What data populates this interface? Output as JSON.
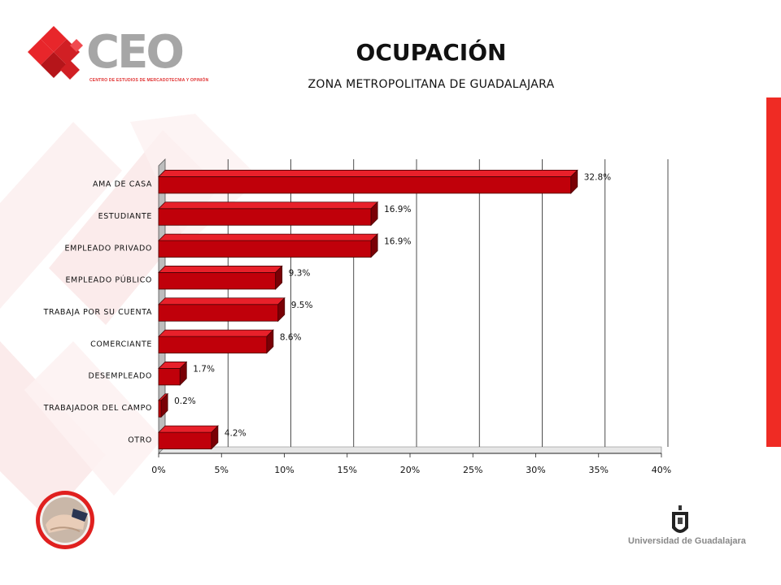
{
  "header": {
    "title": "OCUPACIÓN",
    "subtitle": "ZONA METROPOLITANA DE GUADALAJARA"
  },
  "logo": {
    "text": "CEO",
    "tagline": "CENTRO DE ESTUDIOS DE MERCADOTECNIA Y OPINIÓN"
  },
  "footer": {
    "university": "Universidad de Guadalajara"
  },
  "colors": {
    "bar": "#c0000a",
    "bar_dark": "#7a0006",
    "bar_light": "#e8202a",
    "accent": "#ef2b24"
  },
  "chart_data": {
    "type": "bar",
    "orientation": "horizontal",
    "style": "3d",
    "categories": [
      "AMA DE CASA",
      "ESTUDIANTE",
      "EMPLEADO PRIVADO",
      "EMPLEADO PÚBLICO",
      "TRABAJA POR SU CUENTA",
      "COMERCIANTE",
      "DESEMPLEADO",
      "TRABAJADOR DEL CAMPO",
      "OTRO"
    ],
    "values": [
      32.8,
      16.9,
      16.9,
      9.3,
      9.5,
      8.6,
      1.7,
      0.2,
      4.2
    ],
    "value_labels": [
      "32.8%",
      "16.9%",
      "16.9%",
      "9.3%",
      "9.5%",
      "8.6%",
      "1.7%",
      "0.2%",
      "4.2%"
    ],
    "x_ticks": [
      "0%",
      "5%",
      "10%",
      "15%",
      "20%",
      "25%",
      "30%",
      "35%",
      "40%"
    ],
    "xlim": [
      0,
      40
    ],
    "grid": "vertical"
  }
}
